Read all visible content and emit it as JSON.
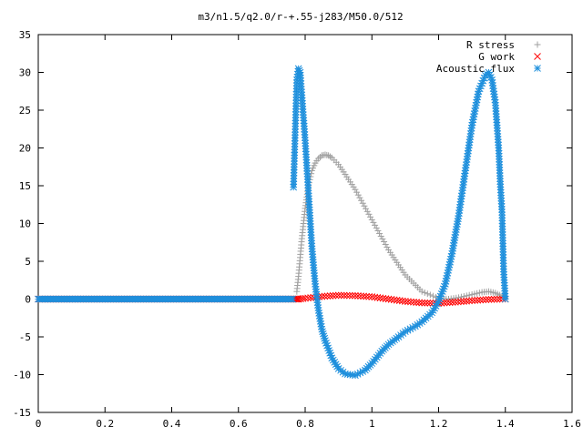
{
  "chart_data": {
    "type": "scatter",
    "title": "m3/n1.5/q2.0/r-+.55-j283/M50.0/512",
    "xlabel": "",
    "ylabel": "",
    "xlim": [
      0,
      1.6
    ],
    "ylim": [
      -15,
      35
    ],
    "x_ticks": [
      "0",
      "0.2",
      "0.4",
      "0.6",
      "0.8",
      "1",
      "1.2",
      "1.4",
      "1.6"
    ],
    "y_ticks": [
      "-15",
      "-10",
      "-5",
      "0",
      "5",
      "10",
      "15",
      "20",
      "25",
      "30",
      "35"
    ],
    "grid": false,
    "legend_position": "top-right",
    "series": [
      {
        "name": "R stress",
        "marker": "plus",
        "color": "#a0a0a0",
        "x": [
          0.775,
          0.78,
          0.79,
          0.8,
          0.81,
          0.82,
          0.83,
          0.84,
          0.85,
          0.86,
          0.87,
          0.88,
          0.9,
          0.92,
          0.95,
          1.0,
          1.05,
          1.1,
          1.15,
          1.2,
          1.23,
          1.26,
          1.3,
          1.33,
          1.35,
          1.37,
          1.39,
          1.4
        ],
        "y": [
          1.0,
          3.0,
          8.0,
          12.0,
          15.0,
          17.0,
          18.0,
          18.6,
          19.0,
          19.1,
          19.0,
          18.7,
          17.8,
          16.5,
          14.5,
          10.5,
          6.5,
          3.2,
          1.0,
          0.1,
          0.0,
          0.2,
          0.6,
          0.9,
          1.0,
          0.8,
          0.4,
          0.1
        ]
      },
      {
        "name": "G work",
        "marker": "cross",
        "color": "#ff0000",
        "x": [
          0.78,
          0.8,
          0.85,
          0.9,
          0.95,
          1.0,
          1.05,
          1.1,
          1.15,
          1.2,
          1.25,
          1.3,
          1.35,
          1.4
        ],
        "y": [
          0.0,
          0.1,
          0.35,
          0.5,
          0.45,
          0.3,
          0.0,
          -0.3,
          -0.5,
          -0.55,
          -0.4,
          -0.2,
          -0.05,
          0.0
        ]
      },
      {
        "name": "Acoustic flux",
        "marker": "star",
        "color": "#1e8fdc",
        "x": [
          0.765,
          0.775,
          0.78,
          0.785,
          0.79,
          0.8,
          0.81,
          0.82,
          0.83,
          0.84,
          0.85,
          0.86,
          0.88,
          0.9,
          0.92,
          0.95,
          0.98,
          1.0,
          1.03,
          1.05,
          1.08,
          1.1,
          1.13,
          1.15,
          1.18,
          1.2,
          1.22,
          1.24,
          1.26,
          1.28,
          1.3,
          1.32,
          1.34,
          1.35,
          1.36,
          1.37,
          1.38,
          1.385,
          1.39,
          1.395,
          1.4
        ],
        "y": [
          14.8,
          29.0,
          30.5,
          30.0,
          27.0,
          21.0,
          14.0,
          7.0,
          2.0,
          -1.5,
          -4.0,
          -5.5,
          -7.8,
          -9.2,
          -9.9,
          -10.1,
          -9.4,
          -8.5,
          -6.9,
          -6.0,
          -5.0,
          -4.3,
          -3.6,
          -3.0,
          -1.8,
          -0.3,
          2.0,
          6.0,
          11.0,
          17.0,
          23.0,
          27.5,
          29.6,
          30.0,
          29.0,
          26.0,
          20.0,
          15.2,
          11.5,
          3.6,
          0.0
        ]
      }
    ]
  }
}
